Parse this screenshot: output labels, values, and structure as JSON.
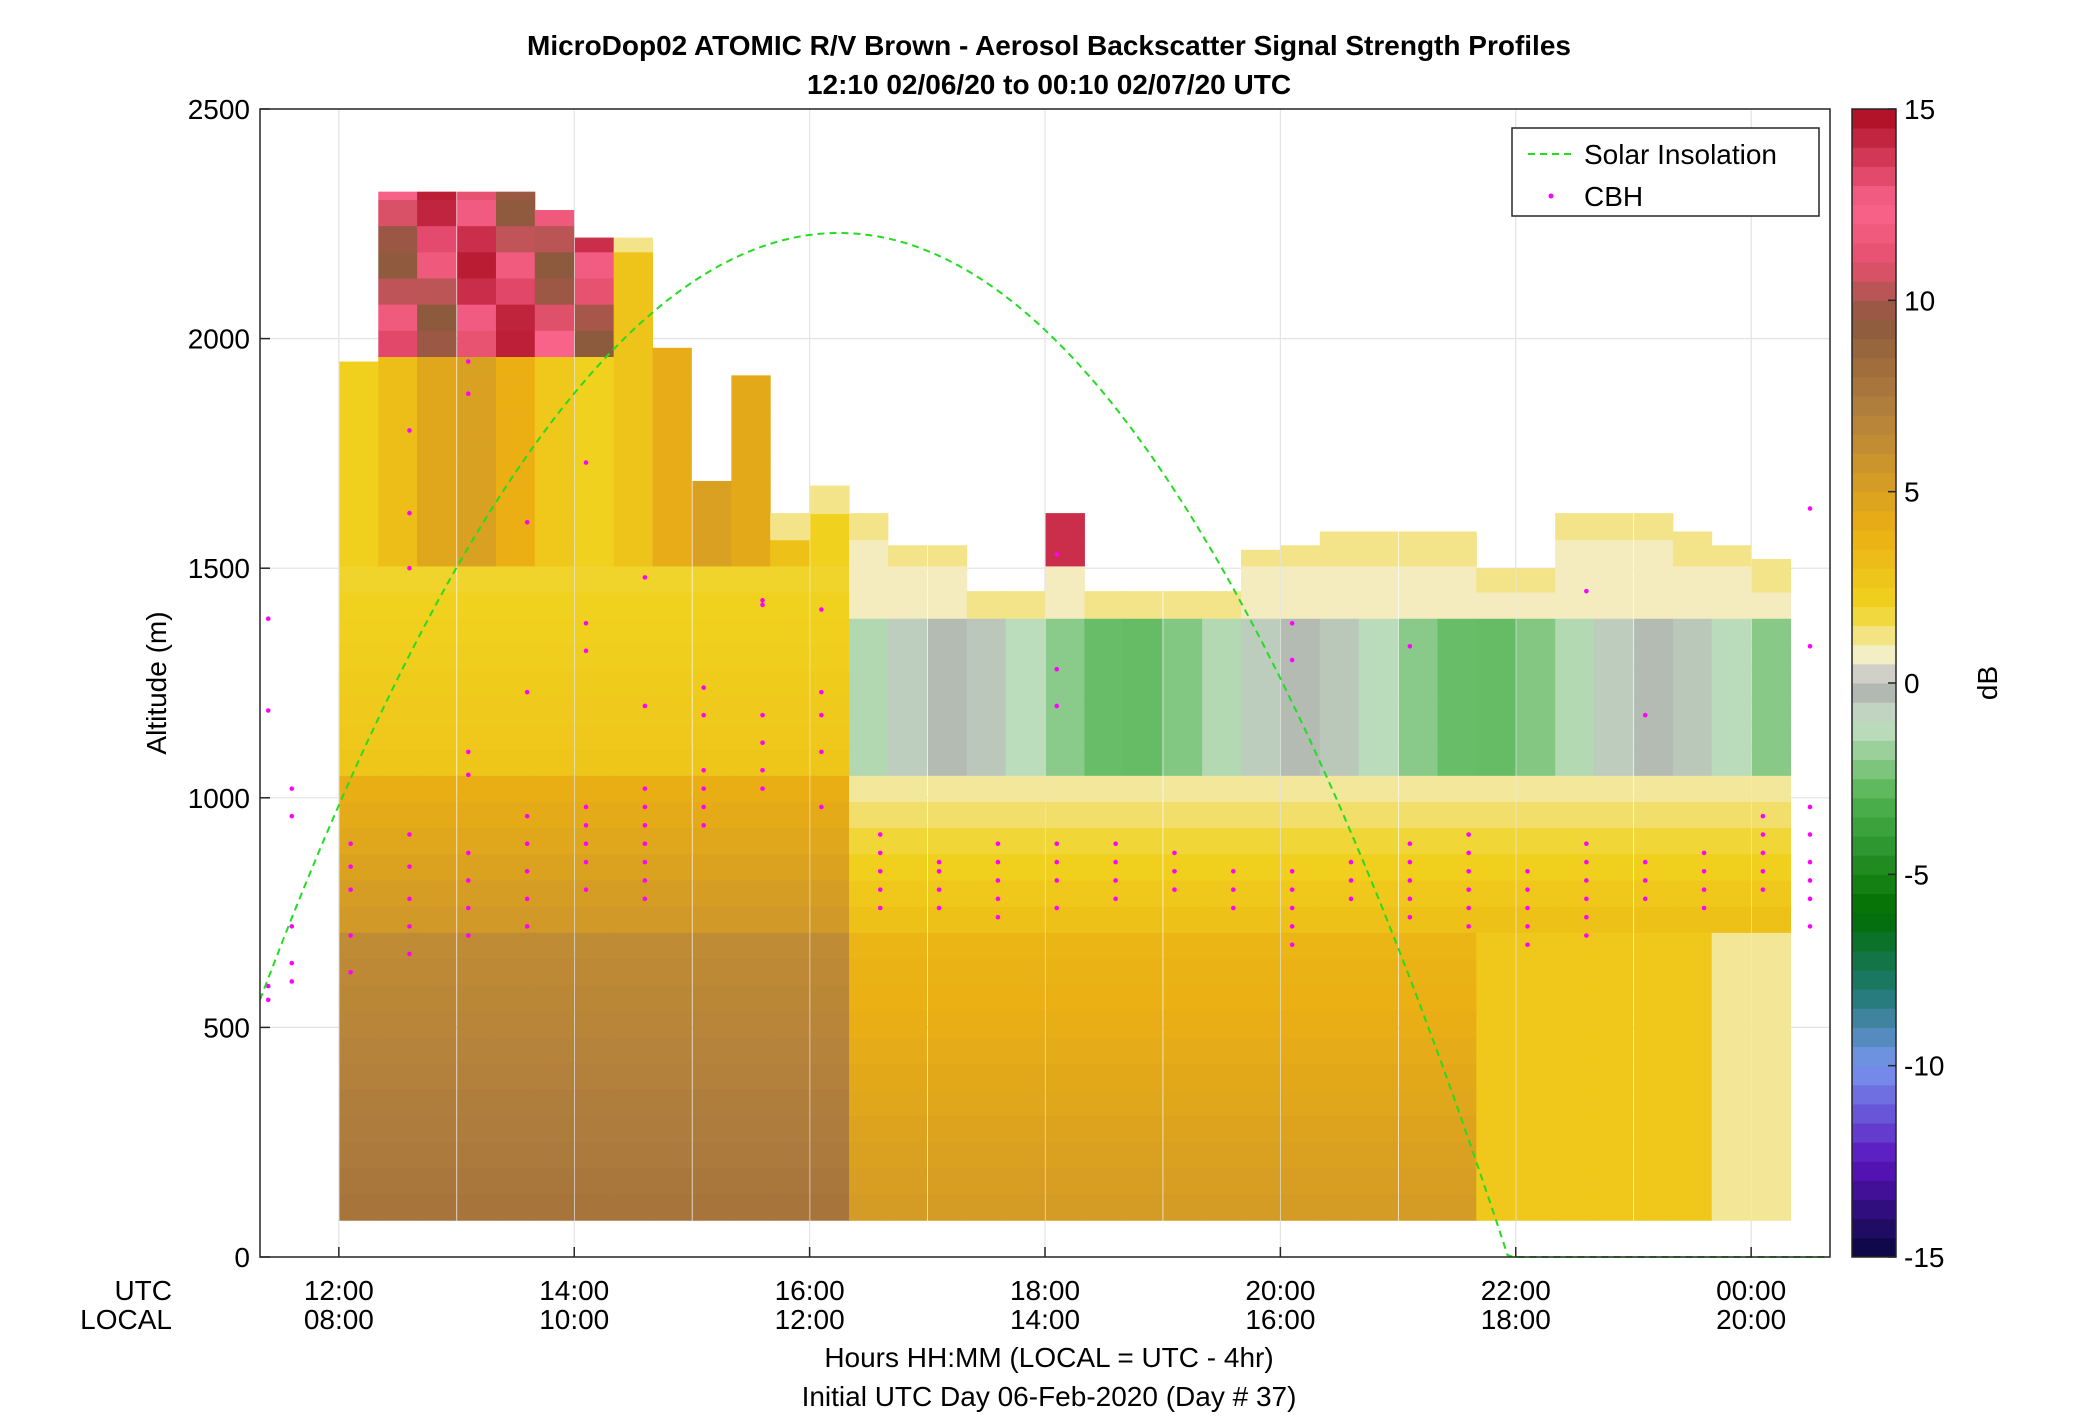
{
  "chart_data": {
    "type": "heatmap",
    "title": "MicroDop02 ATOMIC R/V Brown - Aerosol Backscatter Signal Strength Profiles",
    "subtitle": "12:10 02/06/20 to 00:10 02/07/20  UTC",
    "ylabel": "Altitude (m)",
    "xlabel": "Hours HH:MM  (LOCAL = UTC - 4hr)",
    "xlabel2": "Initial UTC Day 06-Feb-2020 (Day # 37)",
    "row_labels": {
      "utc": "UTC",
      "local": "LOCAL"
    },
    "colorbar_label": "dB",
    "x_range_hours": [
      11.33,
      24.67
    ],
    "ylim": [
      0,
      2500
    ],
    "yticks": [
      0,
      500,
      1000,
      1500,
      2000,
      2500
    ],
    "xticks": [
      {
        "hour": 12,
        "utc": "12:00",
        "local": "08:00"
      },
      {
        "hour": 14,
        "utc": "14:00",
        "local": "10:00"
      },
      {
        "hour": 16,
        "utc": "16:00",
        "local": "12:00"
      },
      {
        "hour": 18,
        "utc": "18:00",
        "local": "14:00"
      },
      {
        "hour": 20,
        "utc": "20:00",
        "local": "16:00"
      },
      {
        "hour": 22,
        "utc": "22:00",
        "local": "18:00"
      },
      {
        "hour": 24,
        "utc": "00:00",
        "local": "20:00"
      }
    ],
    "colorbar": {
      "range": [
        -15,
        15
      ],
      "ticks": [
        -15,
        -10,
        -5,
        0,
        5,
        10,
        15
      ]
    },
    "grid": true,
    "legend_position": "top-right",
    "legend": [
      {
        "label": "Solar Insolation",
        "style": "dashed line",
        "color": "#22dd22"
      },
      {
        "label": "CBH",
        "style": "dots",
        "color": "#ff00ff"
      }
    ],
    "profile_times_hours": [
      12.17,
      12.5,
      12.83,
      13.17,
      13.5,
      13.83,
      14.17,
      14.5,
      14.83,
      15.17,
      15.5,
      15.83,
      16.17,
      16.5,
      16.83,
      17.17,
      17.5,
      17.83,
      18.17,
      18.5,
      18.83,
      19.17,
      19.5,
      19.83,
      20.17,
      20.5,
      20.83,
      21.17,
      21.5,
      21.83,
      22.17,
      22.5,
      22.83,
      23.17,
      23.5,
      23.83,
      24.17
    ],
    "profile_top_altitude_m": [
      1950,
      2320,
      2320,
      2320,
      2320,
      2280,
      2220,
      2220,
      1980,
      1690,
      1920,
      1620,
      1680,
      1620,
      1550,
      1550,
      1450,
      1450,
      1620,
      1450,
      1450,
      1450,
      1450,
      1540,
      1550,
      1580,
      1580,
      1580,
      1580,
      1500,
      1500,
      1620,
      1620,
      1620,
      1580,
      1550,
      1520
    ],
    "profile_bottom_altitude_m": 80,
    "series_note_values_db": {
      "near_surface_range": [
        3,
        9
      ],
      "boundary_layer_top_range": [
        -3,
        1
      ],
      "cloud_returns": [
        10,
        15
      ]
    },
    "solar_insolation": {
      "peak_hour": 16.25,
      "peak_altitude_m": 2230,
      "start": {
        "hour": 11.33,
        "altitude_m": 560
      },
      "zero_hour": 22.0
    },
    "cbh": {
      "samples": [
        {
          "h": 11.4,
          "alt": [
            560,
            590,
            1390,
            1190
          ]
        },
        {
          "h": 11.6,
          "alt": [
            1020,
            960,
            720,
            640,
            600
          ]
        },
        {
          "h": 12.1,
          "alt": [
            900,
            850,
            800,
            700,
            620
          ]
        },
        {
          "h": 12.6,
          "alt": [
            920,
            850,
            780,
            720,
            660,
            1500,
            1620,
            1800
          ]
        },
        {
          "h": 13.1,
          "alt": [
            880,
            820,
            760,
            700,
            1100,
            1050,
            1950,
            1880
          ]
        },
        {
          "h": 13.6,
          "alt": [
            960,
            900,
            840,
            780,
            720,
            1600,
            1230
          ]
        },
        {
          "h": 14.1,
          "alt": [
            980,
            940,
            900,
            860,
            800,
            1380,
            1320,
            1730
          ]
        },
        {
          "h": 14.6,
          "alt": [
            1020,
            980,
            940,
            900,
            860,
            820,
            780,
            1480,
            1200
          ]
        },
        {
          "h": 15.1,
          "alt": [
            1060,
            1020,
            980,
            940,
            1180,
            1240
          ]
        },
        {
          "h": 15.6,
          "alt": [
            1180,
            1120,
            1060,
            1020,
            1430,
            1420
          ]
        },
        {
          "h": 16.1,
          "alt": [
            1230,
            1180,
            1100,
            980,
            1410
          ]
        },
        {
          "h": 16.6,
          "alt": [
            920,
            880,
            840,
            800,
            760
          ]
        },
        {
          "h": 17.1,
          "alt": [
            860,
            840,
            800,
            760
          ]
        },
        {
          "h": 17.6,
          "alt": [
            900,
            860,
            820,
            780,
            740
          ]
        },
        {
          "h": 18.1,
          "alt": [
            900,
            860,
            820,
            760,
            1530,
            1280,
            1200
          ]
        },
        {
          "h": 18.6,
          "alt": [
            900,
            860,
            820,
            780
          ]
        },
        {
          "h": 19.1,
          "alt": [
            880,
            840,
            800
          ]
        },
        {
          "h": 19.6,
          "alt": [
            840,
            800,
            760
          ]
        },
        {
          "h": 20.1,
          "alt": [
            840,
            800,
            760,
            720,
            680,
            1380,
            1300
          ]
        },
        {
          "h": 20.6,
          "alt": [
            860,
            820,
            780
          ]
        },
        {
          "h": 21.1,
          "alt": [
            900,
            860,
            820,
            780,
            740,
            1330
          ]
        },
        {
          "h": 21.6,
          "alt": [
            920,
            880,
            840,
            800,
            760,
            720
          ]
        },
        {
          "h": 22.1,
          "alt": [
            840,
            800,
            760,
            720,
            680
          ]
        },
        {
          "h": 22.6,
          "alt": [
            900,
            860,
            820,
            780,
            740,
            700,
            1450
          ]
        },
        {
          "h": 23.1,
          "alt": [
            860,
            820,
            780,
            1180
          ]
        },
        {
          "h": 23.6,
          "alt": [
            880,
            840,
            800,
            760
          ]
        },
        {
          "h": 24.1,
          "alt": [
            960,
            920,
            880,
            840,
            800
          ]
        },
        {
          "h": 24.5,
          "alt": [
            980,
            920,
            860,
            820,
            780,
            720,
            1630,
            1330
          ]
        }
      ]
    }
  }
}
